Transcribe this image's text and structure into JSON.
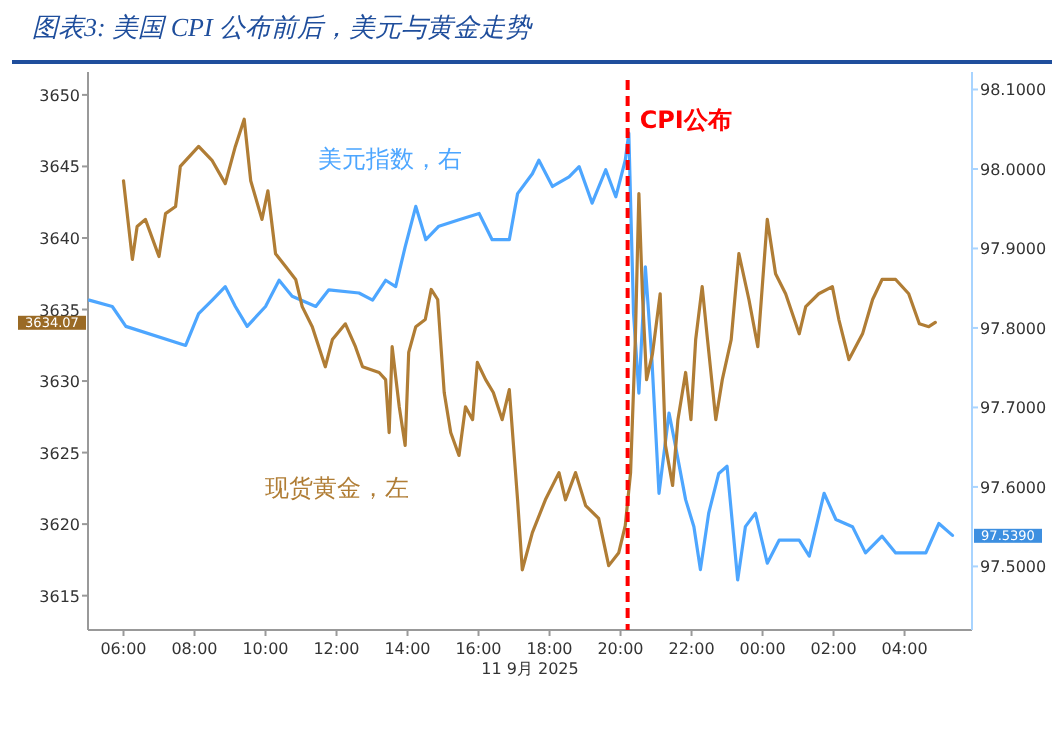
{
  "chart_data": {
    "type": "line",
    "title": "图表3:  美国 CPI 公布前后，美元与黄金走势",
    "xlabel": "11 9月 2025",
    "xlim": [
      "2025-09-11T05:00",
      "2025-09-12T05:54"
    ],
    "xticks": [
      {
        "value": "2025-09-11T06:00",
        "label": "06:00"
      },
      {
        "value": "2025-09-11T08:00",
        "label": "08:00"
      },
      {
        "value": "2025-09-11T10:00",
        "label": "10:00"
      },
      {
        "value": "2025-09-11T12:00",
        "label": "12:00"
      },
      {
        "value": "2025-09-11T14:00",
        "label": "14:00"
      },
      {
        "value": "2025-09-11T16:00",
        "label": "16:00"
      },
      {
        "value": "2025-09-11T18:00",
        "label": "18:00"
      },
      {
        "value": "2025-09-11T20:00",
        "label": "20:00"
      },
      {
        "value": "2025-09-11T22:00",
        "label": "22:00"
      },
      {
        "value": "2025-09-12T00:00",
        "label": "00:00"
      },
      {
        "value": "2025-09-12T02:00",
        "label": "02:00"
      },
      {
        "value": "2025-09-12T04:00",
        "label": "04:00"
      }
    ],
    "ylim": [
      3612.6,
      3651.6
    ],
    "yticks": [
      3615,
      3620,
      3625,
      3630,
      3635,
      3640,
      3645,
      3650
    ],
    "y2lim": [
      97.42,
      98.122
    ],
    "y2ticks": [
      {
        "value": 97.5,
        "label": "97.5000"
      },
      {
        "value": 97.6,
        "label": "97.6000"
      },
      {
        "value": 97.7,
        "label": "97.7000"
      },
      {
        "value": 97.8,
        "label": "97.8000"
      },
      {
        "value": 97.9,
        "label": "97.9000"
      },
      {
        "value": 98.0,
        "label": "98.0000"
      },
      {
        "value": 98.1,
        "label": "98.1000"
      }
    ],
    "grid": false,
    "line_style": "solid",
    "annotations": [
      "97.5390",
      "3634.07"
    ],
    "ref_lines": [
      {
        "axis": "x",
        "value": "2025-09-11T20:12",
        "label": "CPI公布",
        "color": "#ff0000",
        "line_style": "dashed"
      }
    ],
    "series": [
      {
        "name": "美元指数，右",
        "color": "#4da6ff",
        "axis": "y2",
        "x": [
          "2025-09-11T05:02",
          "2025-09-11T05:41",
          "2025-09-11T06:04",
          "2025-09-11T07:45",
          "2025-09-11T08:07",
          "2025-09-11T08:30",
          "2025-09-11T08:52",
          "2025-09-11T09:09",
          "2025-09-11T09:29",
          "2025-09-11T10:00",
          "2025-09-11T10:23",
          "2025-09-11T10:45",
          "2025-09-11T11:25",
          "2025-09-11T11:47",
          "2025-09-11T12:38",
          "2025-09-11T13:01",
          "2025-09-11T13:23",
          "2025-09-11T13:40",
          "2025-09-11T13:56",
          "2025-09-11T14:14",
          "2025-09-11T14:31",
          "2025-09-11T14:53",
          "2025-09-11T15:27",
          "2025-09-11T16:01",
          "2025-09-11T16:23",
          "2025-09-11T16:52",
          "2025-09-11T17:06",
          "2025-09-11T17:31",
          "2025-09-11T17:42",
          "2025-09-11T18:05",
          "2025-09-11T18:33",
          "2025-09-11T18:50",
          "2025-09-11T19:12",
          "2025-09-11T19:35",
          "2025-09-11T19:52",
          "2025-09-11T20:08",
          "2025-09-11T20:14",
          "2025-09-11T20:22",
          "2025-09-11T20:31",
          "2025-09-11T20:42",
          "2025-09-11T20:53",
          "2025-09-11T21:05",
          "2025-09-11T21:22",
          "2025-09-11T21:33",
          "2025-09-11T21:50",
          "2025-09-11T22:04",
          "2025-09-11T22:15",
          "2025-09-11T22:29",
          "2025-09-11T22:46",
          "2025-09-11T23:00",
          "2025-09-11T23:18",
          "2025-09-11T23:31",
          "2025-09-11T23:48",
          "2025-09-12T00:08",
          "2025-09-12T00:28",
          "2025-09-12T01:02",
          "2025-09-12T01:19",
          "2025-09-12T01:44",
          "2025-09-12T02:04",
          "2025-09-12T02:32",
          "2025-09-12T02:54",
          "2025-09-12T03:22",
          "2025-09-12T03:45",
          "2025-09-12T04:36",
          "2025-09-12T04:58",
          "2025-09-12T05:21"
        ],
        "values": [
          97.835,
          97.827,
          97.802,
          97.778,
          97.818,
          97.835,
          97.852,
          97.827,
          97.802,
          97.827,
          97.86,
          97.84,
          97.827,
          97.848,
          97.844,
          97.835,
          97.86,
          97.852,
          97.902,
          97.953,
          97.911,
          97.928,
          97.936,
          97.944,
          97.911,
          97.911,
          97.969,
          97.994,
          98.011,
          97.978,
          97.99,
          98.003,
          97.957,
          97.999,
          97.965,
          98.011,
          98.045,
          97.818,
          97.718,
          97.877,
          97.76,
          97.592,
          97.693,
          97.651,
          97.584,
          97.55,
          97.496,
          97.567,
          97.617,
          97.626,
          97.483,
          97.55,
          97.567,
          97.504,
          97.533,
          97.533,
          97.513,
          97.592,
          97.559,
          97.55,
          97.517,
          97.538,
          97.517,
          97.517,
          97.554,
          97.539
        ]
      },
      {
        "name": "现货黄金，左",
        "color": "#b07d35",
        "x": [
          "2025-09-11T06:00",
          "2025-09-11T06:15",
          "2025-09-11T06:23",
          "2025-09-11T06:37",
          "2025-09-11T07:00",
          "2025-09-11T07:11",
          "2025-09-11T07:28",
          "2025-09-11T07:36",
          "2025-09-11T08:07",
          "2025-09-11T08:30",
          "2025-09-11T08:52",
          "2025-09-11T09:09",
          "2025-09-11T09:24",
          "2025-09-11T09:35",
          "2025-09-11T09:54",
          "2025-09-11T10:04",
          "2025-09-11T10:17",
          "2025-09-11T10:34",
          "2025-09-11T10:51",
          "2025-09-11T11:02",
          "2025-09-11T11:19",
          "2025-09-11T11:41",
          "2025-09-11T11:53",
          "2025-09-11T12:15",
          "2025-09-11T12:32",
          "2025-09-11T12:44",
          "2025-09-11T13:12",
          "2025-09-11T13:23",
          "2025-09-11T13:29",
          "2025-09-11T13:34",
          "2025-09-11T13:46",
          "2025-09-11T13:56",
          "2025-09-11T14:02",
          "2025-09-11T14:14",
          "2025-09-11T14:30",
          "2025-09-11T14:40",
          "2025-09-11T14:51",
          "2025-09-11T15:02",
          "2025-09-11T15:13",
          "2025-09-11T15:27",
          "2025-09-11T15:38",
          "2025-09-11T15:50",
          "2025-09-11T15:58",
          "2025-09-11T16:12",
          "2025-09-11T16:25",
          "2025-09-11T16:40",
          "2025-09-11T16:52",
          "2025-09-11T17:06",
          "2025-09-11T17:14",
          "2025-09-11T17:31",
          "2025-09-11T17:53",
          "2025-09-11T18:16",
          "2025-09-11T18:27",
          "2025-09-11T18:44",
          "2025-09-11T19:01",
          "2025-09-11T19:23",
          "2025-09-11T19:40",
          "2025-09-11T19:57",
          "2025-09-11T20:08",
          "2025-09-11T20:17",
          "2025-09-11T20:25",
          "2025-09-11T20:31",
          "2025-09-11T20:37",
          "2025-09-11T20:44",
          "2025-09-11T20:54",
          "2025-09-11T21:07",
          "2025-09-11T21:16",
          "2025-09-11T21:28",
          "2025-09-11T21:37",
          "2025-09-11T21:50",
          "2025-09-11T21:59",
          "2025-09-11T22:07",
          "2025-09-11T22:18",
          "2025-09-11T22:27",
          "2025-09-11T22:41",
          "2025-09-11T22:52",
          "2025-09-11T23:07",
          "2025-09-11T23:20",
          "2025-09-11T23:37",
          "2025-09-11T23:52",
          "2025-09-12T00:08",
          "2025-09-12T00:22",
          "2025-09-12T00:39",
          "2025-09-12T01:02",
          "2025-09-12T01:13",
          "2025-09-12T01:35",
          "2025-09-12T01:58",
          "2025-09-12T02:09",
          "2025-09-12T02:26",
          "2025-09-12T02:49",
          "2025-09-12T03:06",
          "2025-09-12T03:22",
          "2025-09-12T03:45",
          "2025-09-12T04:07",
          "2025-09-12T04:25",
          "2025-09-12T04:41",
          "2025-09-12T04:52"
        ],
        "values": [
          3644.0,
          3638.5,
          3640.8,
          3641.3,
          3638.7,
          3641.7,
          3642.2,
          3645.0,
          3646.4,
          3645.4,
          3643.8,
          3646.4,
          3648.3,
          3644.0,
          3641.3,
          3643.3,
          3638.9,
          3638.0,
          3637.1,
          3635.2,
          3633.8,
          3631.0,
          3632.9,
          3634.0,
          3632.4,
          3631.0,
          3630.6,
          3630.1,
          3626.4,
          3632.4,
          3628.2,
          3625.5,
          3632.0,
          3633.8,
          3634.3,
          3636.4,
          3635.7,
          3629.2,
          3626.4,
          3624.8,
          3628.2,
          3627.3,
          3631.3,
          3630.1,
          3629.2,
          3627.3,
          3629.4,
          3621.7,
          3616.8,
          3619.4,
          3621.7,
          3623.6,
          3621.7,
          3623.6,
          3621.3,
          3620.4,
          3617.1,
          3618.0,
          3619.9,
          3623.6,
          3632.9,
          3643.1,
          3636.1,
          3630.1,
          3631.9,
          3636.1,
          3625.5,
          3622.7,
          3627.3,
          3630.6,
          3627.3,
          3632.9,
          3636.6,
          3632.9,
          3627.3,
          3630.1,
          3632.9,
          3638.9,
          3635.7,
          3632.4,
          3641.3,
          3637.5,
          3636.1,
          3633.3,
          3635.2,
          3636.1,
          3636.6,
          3634.3,
          3631.5,
          3633.3,
          3635.7,
          3637.1,
          3637.1,
          3636.1,
          3634.0,
          3633.8,
          3634.1
        ]
      }
    ]
  }
}
